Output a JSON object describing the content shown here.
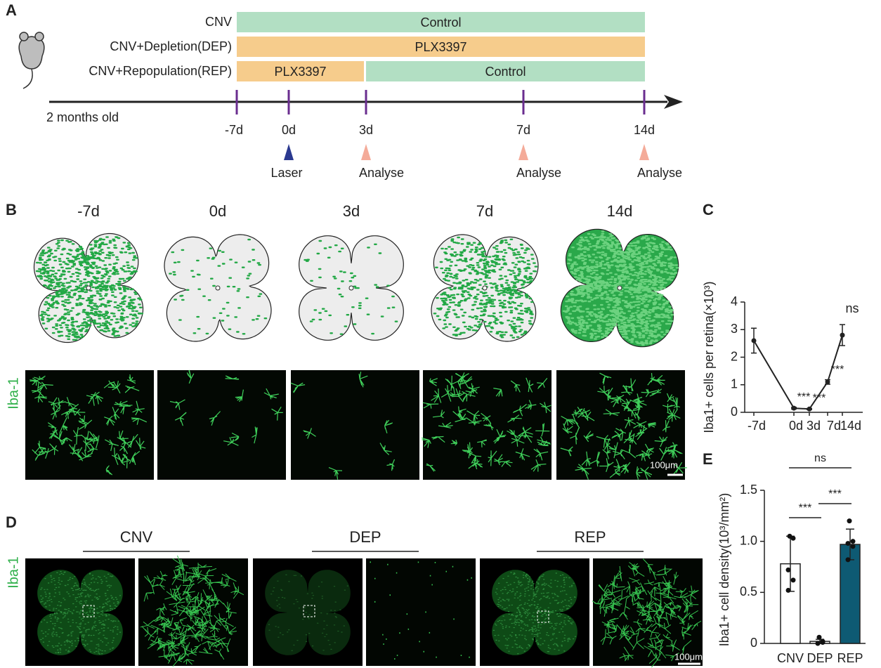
{
  "panel_labels": [
    "A",
    "B",
    "C",
    "D",
    "E"
  ],
  "timeline": {
    "groups": [
      {
        "name": "CNV",
        "segments": [
          {
            "label": "Control",
            "color": "#b2dfc3"
          }
        ]
      },
      {
        "name": "CNV+Depletion(DEP)",
        "segments": [
          {
            "label": "PLX3397",
            "color": "#f6cc8c"
          }
        ]
      },
      {
        "name": "CNV+Repopulation(REP)",
        "segments": [
          {
            "label": "PLX3397",
            "color": "#f6cc8c"
          },
          {
            "label": "Control",
            "color": "#b2dfc3"
          }
        ]
      }
    ],
    "start_label": "2 months old",
    "timepoints": [
      "-7d",
      "0d",
      "3d",
      "7d",
      "14d"
    ],
    "events": [
      null,
      "Laser",
      "Analyse",
      "Analyse",
      "Analyse"
    ],
    "event_colors": [
      null,
      "#2b3990",
      "#f4ab99",
      "#f4ab99",
      "#f4ab99"
    ]
  },
  "panel_b": {
    "timepoints": [
      "-7d",
      "0d",
      "3d",
      "7d",
      "14d"
    ],
    "stain": "Iba-1",
    "scale_bar": "100μm"
  },
  "panel_d": {
    "groups": [
      "CNV",
      "DEP",
      "REP"
    ],
    "stain": "Iba-1",
    "scale_bar": "100μm"
  },
  "chart_data": [
    {
      "type": "line",
      "y_label": "Iba1+ cells per retina(×10³)",
      "categories": [
        "-7d",
        "0d",
        "3d",
        "7d",
        "14d"
      ],
      "values": [
        2.6,
        0.15,
        0.12,
        1.1,
        2.8
      ],
      "errors": [
        0.45,
        0.03,
        0.02,
        0.08,
        0.38
      ],
      "significance": [
        null,
        "***",
        "***",
        "***",
        "ns"
      ],
      "color": "#222222",
      "ylim": [
        0,
        4
      ],
      "yticks": [
        0,
        1,
        2,
        3,
        4
      ]
    },
    {
      "type": "bar",
      "y_label": "Iba1+ cell density(10³/mm²)",
      "categories": [
        "CNV",
        "DEP",
        "REP"
      ],
      "values": [
        0.78,
        0.02,
        0.97
      ],
      "errors": [
        0.27,
        0.02,
        0.15
      ],
      "colors": [
        "#ffffff",
        "#ffffff",
        "#0e5a73"
      ],
      "points": [
        [
          1.05,
          1.03,
          0.72,
          0.62,
          0.52
        ],
        [
          0.06,
          0.01,
          0.0,
          0.02
        ],
        [
          1.2,
          1.0,
          0.98,
          0.95,
          0.82
        ]
      ],
      "comparisons": [
        {
          "pair": [
            0,
            2
          ],
          "label": "ns"
        },
        {
          "pair": [
            0,
            1
          ],
          "label": "***"
        },
        {
          "pair": [
            1,
            2
          ],
          "label": "***"
        }
      ],
      "ylim": [
        0,
        1.5
      ],
      "yticks": [
        0,
        0.5,
        {
          "value": 1.0,
          "label": "1.0"
        },
        1.5
      ]
    }
  ]
}
